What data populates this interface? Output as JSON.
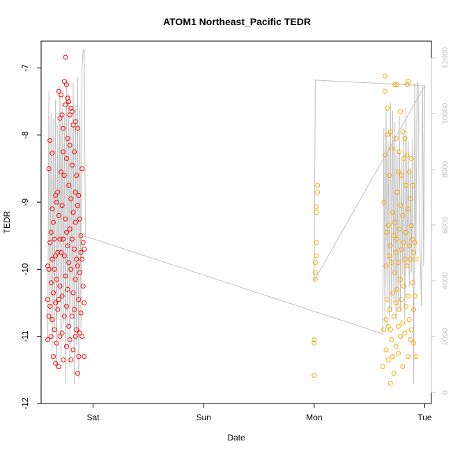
{
  "chart_data": {
    "type": "scatter",
    "title": "ATOM1 Northeast_Pacific TEDR",
    "xlabel": "Date",
    "ylabel": "TEDR",
    "x_ticks": [
      "Sat",
      "Sun",
      "Mon",
      "Tue"
    ],
    "x_tick_days": [
      1,
      2,
      3,
      4
    ],
    "xlim_days": [
      0.53,
      4.06
    ],
    "ylim": [
      -12,
      -6.6
    ],
    "y_ticks": [
      -7,
      -8,
      -9,
      -10,
      -11,
      -12
    ],
    "y2_ticks": [
      0,
      2000,
      4000,
      6000,
      8000,
      10000,
      12000
    ],
    "y2lim": [
      -400,
      12600
    ],
    "grid": false,
    "series": [
      {
        "color": "#ff0000",
        "marker": "open-circle",
        "points": [
          [
            0.59,
            -9.95
          ],
          [
            0.59,
            -10.45
          ],
          [
            0.59,
            -11.05
          ],
          [
            0.6,
            -8.5
          ],
          [
            0.6,
            -10.7
          ],
          [
            0.6,
            -10.0
          ],
          [
            0.61,
            -8.08
          ],
          [
            0.61,
            -9.6
          ],
          [
            0.61,
            -10.55
          ],
          [
            0.62,
            -9.45
          ],
          [
            0.62,
            -10.2
          ],
          [
            0.62,
            -11.0
          ],
          [
            0.63,
            -8.27
          ],
          [
            0.63,
            -9.1
          ],
          [
            0.63,
            -9.85
          ],
          [
            0.63,
            -10.75
          ],
          [
            0.64,
            -9.3
          ],
          [
            0.64,
            -10.35
          ],
          [
            0.64,
            -11.3
          ],
          [
            0.65,
            -9.55
          ],
          [
            0.65,
            -10.0
          ],
          [
            0.65,
            -10.9
          ],
          [
            0.66,
            -8.9
          ],
          [
            0.66,
            -9.8
          ],
          [
            0.66,
            -10.5
          ],
          [
            0.66,
            -11.4
          ],
          [
            0.67,
            -9.0
          ],
          [
            0.67,
            -10.15
          ],
          [
            0.67,
            -11.1
          ],
          [
            0.68,
            -8.85
          ],
          [
            0.68,
            -9.75
          ],
          [
            0.68,
            -10.6
          ],
          [
            0.69,
            -7.35
          ],
          [
            0.69,
            -9.2
          ],
          [
            0.69,
            -10.45
          ],
          [
            0.69,
            -11.45
          ],
          [
            0.7,
            -7.75
          ],
          [
            0.7,
            -9.55
          ],
          [
            0.7,
            -10.25
          ],
          [
            0.7,
            -11.0
          ],
          [
            0.71,
            -7.4
          ],
          [
            0.71,
            -8.55
          ],
          [
            0.71,
            -9.75
          ],
          [
            0.72,
            -7.7
          ],
          [
            0.72,
            -9.05
          ],
          [
            0.72,
            -10.4
          ],
          [
            0.72,
            -10.95
          ],
          [
            0.73,
            -7.9
          ],
          [
            0.73,
            -8.25
          ],
          [
            0.73,
            -9.55
          ],
          [
            0.73,
            -11.35
          ],
          [
            0.74,
            -7.2
          ],
          [
            0.74,
            -8.6
          ],
          [
            0.74,
            -9.8
          ],
          [
            0.74,
            -10.7
          ],
          [
            0.75,
            -6.84
          ],
          [
            0.75,
            -7.55
          ],
          [
            0.75,
            -9.25
          ],
          [
            0.75,
            -10.1
          ],
          [
            0.76,
            -7.25
          ],
          [
            0.76,
            -8.35
          ],
          [
            0.76,
            -9.45
          ],
          [
            0.76,
            -10.55
          ],
          [
            0.76,
            -11.15
          ],
          [
            0.77,
            -7.45
          ],
          [
            0.77,
            -8.05
          ],
          [
            0.77,
            -9.65
          ],
          [
            0.77,
            -10.3
          ],
          [
            0.78,
            -7.5
          ],
          [
            0.78,
            -8.75
          ],
          [
            0.78,
            -9.9
          ],
          [
            0.78,
            -10.85
          ],
          [
            0.79,
            -7.7
          ],
          [
            0.79,
            -8.15
          ],
          [
            0.79,
            -9.4
          ],
          [
            0.79,
            -11.05
          ],
          [
            0.8,
            -7.6
          ],
          [
            0.8,
            -8.95
          ],
          [
            0.8,
            -10.0
          ],
          [
            0.8,
            -11.35
          ],
          [
            0.81,
            -7.65
          ],
          [
            0.81,
            -8.45
          ],
          [
            0.81,
            -9.55
          ],
          [
            0.81,
            -10.7
          ],
          [
            0.82,
            -7.85
          ],
          [
            0.82,
            -9.15
          ],
          [
            0.82,
            -10.35
          ],
          [
            0.82,
            -11.2
          ],
          [
            0.83,
            -8.25
          ],
          [
            0.83,
            -9.7
          ],
          [
            0.83,
            -10.6
          ],
          [
            0.84,
            -7.8
          ],
          [
            0.84,
            -8.85
          ],
          [
            0.84,
            -9.3
          ],
          [
            0.84,
            -10.15
          ],
          [
            0.84,
            -11.0
          ],
          [
            0.85,
            -8.6
          ],
          [
            0.85,
            -9.85
          ],
          [
            0.85,
            -10.9
          ],
          [
            0.86,
            -7.9
          ],
          [
            0.86,
            -9.05
          ],
          [
            0.86,
            -9.95
          ],
          [
            0.86,
            -11.55
          ],
          [
            0.87,
            -8.9
          ],
          [
            0.87,
            -10.45
          ],
          [
            0.87,
            -11.3
          ],
          [
            0.88,
            -9.25
          ],
          [
            0.88,
            -10.05
          ],
          [
            0.88,
            -10.95
          ],
          [
            0.89,
            -9.5
          ],
          [
            0.89,
            -9.75
          ],
          [
            0.89,
            -10.65
          ],
          [
            0.9,
            -8.5
          ],
          [
            0.9,
            -9.85
          ],
          [
            0.9,
            -11.0
          ],
          [
            0.91,
            -9.6
          ],
          [
            0.91,
            -10.25
          ],
          [
            0.92,
            -9.7
          ],
          [
            0.92,
            -10.5
          ],
          [
            0.92,
            -11.3
          ]
        ]
      },
      {
        "color": "#ffa500",
        "marker": "open-circle",
        "points": [
          [
            3.0,
            -11.58
          ],
          [
            3.0,
            -11.1
          ],
          [
            3.0,
            -11.05
          ],
          [
            3.01,
            -10.15
          ],
          [
            3.01,
            -10.05
          ],
          [
            3.01,
            -9.9
          ],
          [
            3.02,
            -9.8
          ],
          [
            3.02,
            -9.6
          ],
          [
            3.02,
            -9.15
          ],
          [
            3.02,
            -9.07
          ],
          [
            3.03,
            -8.85
          ],
          [
            3.03,
            -8.75
          ],
          [
            3.62,
            -11.45
          ],
          [
            3.63,
            -9.0
          ],
          [
            3.63,
            -10.9
          ],
          [
            3.64,
            -7.12
          ],
          [
            3.64,
            -7.35
          ],
          [
            3.64,
            -8.3
          ],
          [
            3.65,
            -9.95
          ],
          [
            3.65,
            -10.75
          ],
          [
            3.65,
            -11.2
          ],
          [
            3.66,
            -7.6
          ],
          [
            3.66,
            -8.0
          ],
          [
            3.66,
            -9.45
          ],
          [
            3.66,
            -10.45
          ],
          [
            3.67,
            -9.35
          ],
          [
            3.67,
            -10.85
          ],
          [
            3.67,
            -11.35
          ],
          [
            3.68,
            -8.6
          ],
          [
            3.68,
            -9.8
          ],
          [
            3.68,
            -10.6
          ],
          [
            3.69,
            -7.95
          ],
          [
            3.69,
            -9.65
          ],
          [
            3.69,
            -10.9
          ],
          [
            3.69,
            -11.7
          ],
          [
            3.7,
            -8.2
          ],
          [
            3.7,
            -9.9
          ],
          [
            3.7,
            -11.05
          ],
          [
            3.71,
            -9.15
          ],
          [
            3.71,
            -10.35
          ],
          [
            3.71,
            -11.3
          ],
          [
            3.72,
            -9.5
          ],
          [
            3.72,
            -10.7
          ],
          [
            3.72,
            -11.55
          ],
          [
            3.73,
            -7.25
          ],
          [
            3.73,
            -9.3
          ],
          [
            3.73,
            -10.05
          ],
          [
            3.74,
            -8.05
          ],
          [
            3.74,
            -9.75
          ],
          [
            3.74,
            -10.5
          ],
          [
            3.74,
            -11.15
          ],
          [
            3.75,
            -7.25
          ],
          [
            3.75,
            -8.85
          ],
          [
            3.75,
            -9.55
          ],
          [
            3.75,
            -10.3
          ],
          [
            3.76,
            -8.55
          ],
          [
            3.76,
            -9.9
          ],
          [
            3.76,
            -10.85
          ],
          [
            3.76,
            -11.25
          ],
          [
            3.77,
            -8.25
          ],
          [
            3.77,
            -9.4
          ],
          [
            3.77,
            -10.6
          ],
          [
            3.78,
            -7.65
          ],
          [
            3.78,
            -9.05
          ],
          [
            3.78,
            -10.15
          ],
          [
            3.78,
            -11.0
          ],
          [
            3.79,
            -8.6
          ],
          [
            3.79,
            -9.7
          ],
          [
            3.79,
            -10.45
          ],
          [
            3.8,
            -7.95
          ],
          [
            3.8,
            -9.2
          ],
          [
            3.8,
            -10.8
          ],
          [
            3.8,
            -11.45
          ],
          [
            3.81,
            -8.35
          ],
          [
            3.81,
            -9.6
          ],
          [
            3.81,
            -10.25
          ],
          [
            3.82,
            -8.05
          ],
          [
            3.82,
            -9.85
          ],
          [
            3.82,
            -10.95
          ],
          [
            3.83,
            -8.75
          ],
          [
            3.83,
            -9.45
          ],
          [
            3.83,
            -10.55
          ],
          [
            3.84,
            -7.25
          ],
          [
            3.84,
            -8.3
          ],
          [
            3.84,
            -9.95
          ],
          [
            3.85,
            -7.2
          ],
          [
            3.85,
            -9.1
          ],
          [
            3.85,
            -10.4
          ],
          [
            3.85,
            -11.3
          ],
          [
            3.86,
            -8.55
          ],
          [
            3.86,
            -9.65
          ],
          [
            3.86,
            -10.75
          ],
          [
            3.87,
            -8.95
          ],
          [
            3.87,
            -9.85
          ],
          [
            3.87,
            -11.05
          ],
          [
            3.88,
            -8.35
          ],
          [
            3.88,
            -9.35
          ],
          [
            3.88,
            -10.9
          ],
          [
            3.89,
            -8.75
          ],
          [
            3.89,
            -9.55
          ],
          [
            3.89,
            -10.2
          ],
          [
            3.9,
            -9.75
          ],
          [
            3.9,
            -10.6
          ],
          [
            3.9,
            -11.1
          ],
          [
            3.91,
            -9.6
          ],
          [
            3.91,
            -10.4
          ],
          [
            3.92,
            -9.85
          ],
          [
            3.92,
            -11.3
          ]
        ]
      }
    ],
    "line": {
      "color": "#bebebe",
      "points": [
        [
          0.59,
          1800
        ],
        [
          0.6,
          10800
        ],
        [
          0.61,
          2600
        ],
        [
          0.62,
          10000
        ],
        [
          0.63,
          1500
        ],
        [
          0.64,
          9800
        ],
        [
          0.65,
          2200
        ],
        [
          0.66,
          10500
        ],
        [
          0.67,
          800
        ],
        [
          0.68,
          9600
        ],
        [
          0.69,
          3000
        ],
        [
          0.7,
          11000
        ],
        [
          0.71,
          1200
        ],
        [
          0.72,
          10400
        ],
        [
          0.73,
          2400
        ],
        [
          0.74,
          9900
        ],
        [
          0.75,
          300
        ],
        [
          0.76,
          11200
        ],
        [
          0.77,
          2000
        ],
        [
          0.78,
          10700
        ],
        [
          0.79,
          900
        ],
        [
          0.8,
          9700
        ],
        [
          0.81,
          2800
        ],
        [
          0.82,
          11100
        ],
        [
          0.83,
          300
        ],
        [
          0.84,
          10300
        ],
        [
          0.85,
          1700
        ],
        [
          0.86,
          11300
        ],
        [
          0.87,
          500
        ],
        [
          0.88,
          10200
        ],
        [
          0.89,
          2300
        ],
        [
          0.9,
          11600
        ],
        [
          0.91,
          12300
        ],
        [
          0.92,
          12300
        ],
        [
          0.93,
          5600
        ],
        [
          3.62,
          2100
        ],
        [
          3.63,
          9500
        ],
        [
          3.64,
          2500
        ],
        [
          3.65,
          10200
        ],
        [
          3.66,
          3300
        ],
        [
          3.67,
          9000
        ],
        [
          3.68,
          2700
        ],
        [
          3.69,
          10400
        ],
        [
          3.7,
          2900
        ],
        [
          3.71,
          10100
        ],
        [
          3.72,
          3200
        ],
        [
          3.73,
          9700
        ],
        [
          3.74,
          2600
        ],
        [
          3.75,
          8800
        ],
        [
          3.76,
          3100
        ],
        [
          3.77,
          9900
        ],
        [
          3.78,
          2900
        ],
        [
          3.79,
          8300
        ],
        [
          3.8,
          4200
        ],
        [
          3.81,
          9300
        ],
        [
          3.82,
          2600
        ],
        [
          3.83,
          10200
        ],
        [
          3.84,
          4500
        ],
        [
          3.85,
          9000
        ],
        [
          3.86,
          3800
        ],
        [
          3.87,
          8100
        ],
        [
          3.88,
          4300
        ],
        [
          3.89,
          9100
        ],
        [
          3.9,
          300
        ],
        [
          3.91,
          11100
        ],
        [
          3.92,
          4900
        ],
        [
          3.93,
          11100
        ],
        [
          3.94,
          11100
        ],
        [
          3.95,
          6200
        ],
        [
          3.96,
          4800
        ],
        [
          3.97,
          3100
        ],
        [
          3.98,
          11000
        ],
        [
          3.99,
          4500
        ],
        [
          4.0,
          11000
        ],
        [
          3.0,
          4000
        ],
        [
          3.01,
          11200
        ],
        [
          3.02,
          11200
        ],
        [
          4.0,
          11000
        ]
      ]
    }
  }
}
